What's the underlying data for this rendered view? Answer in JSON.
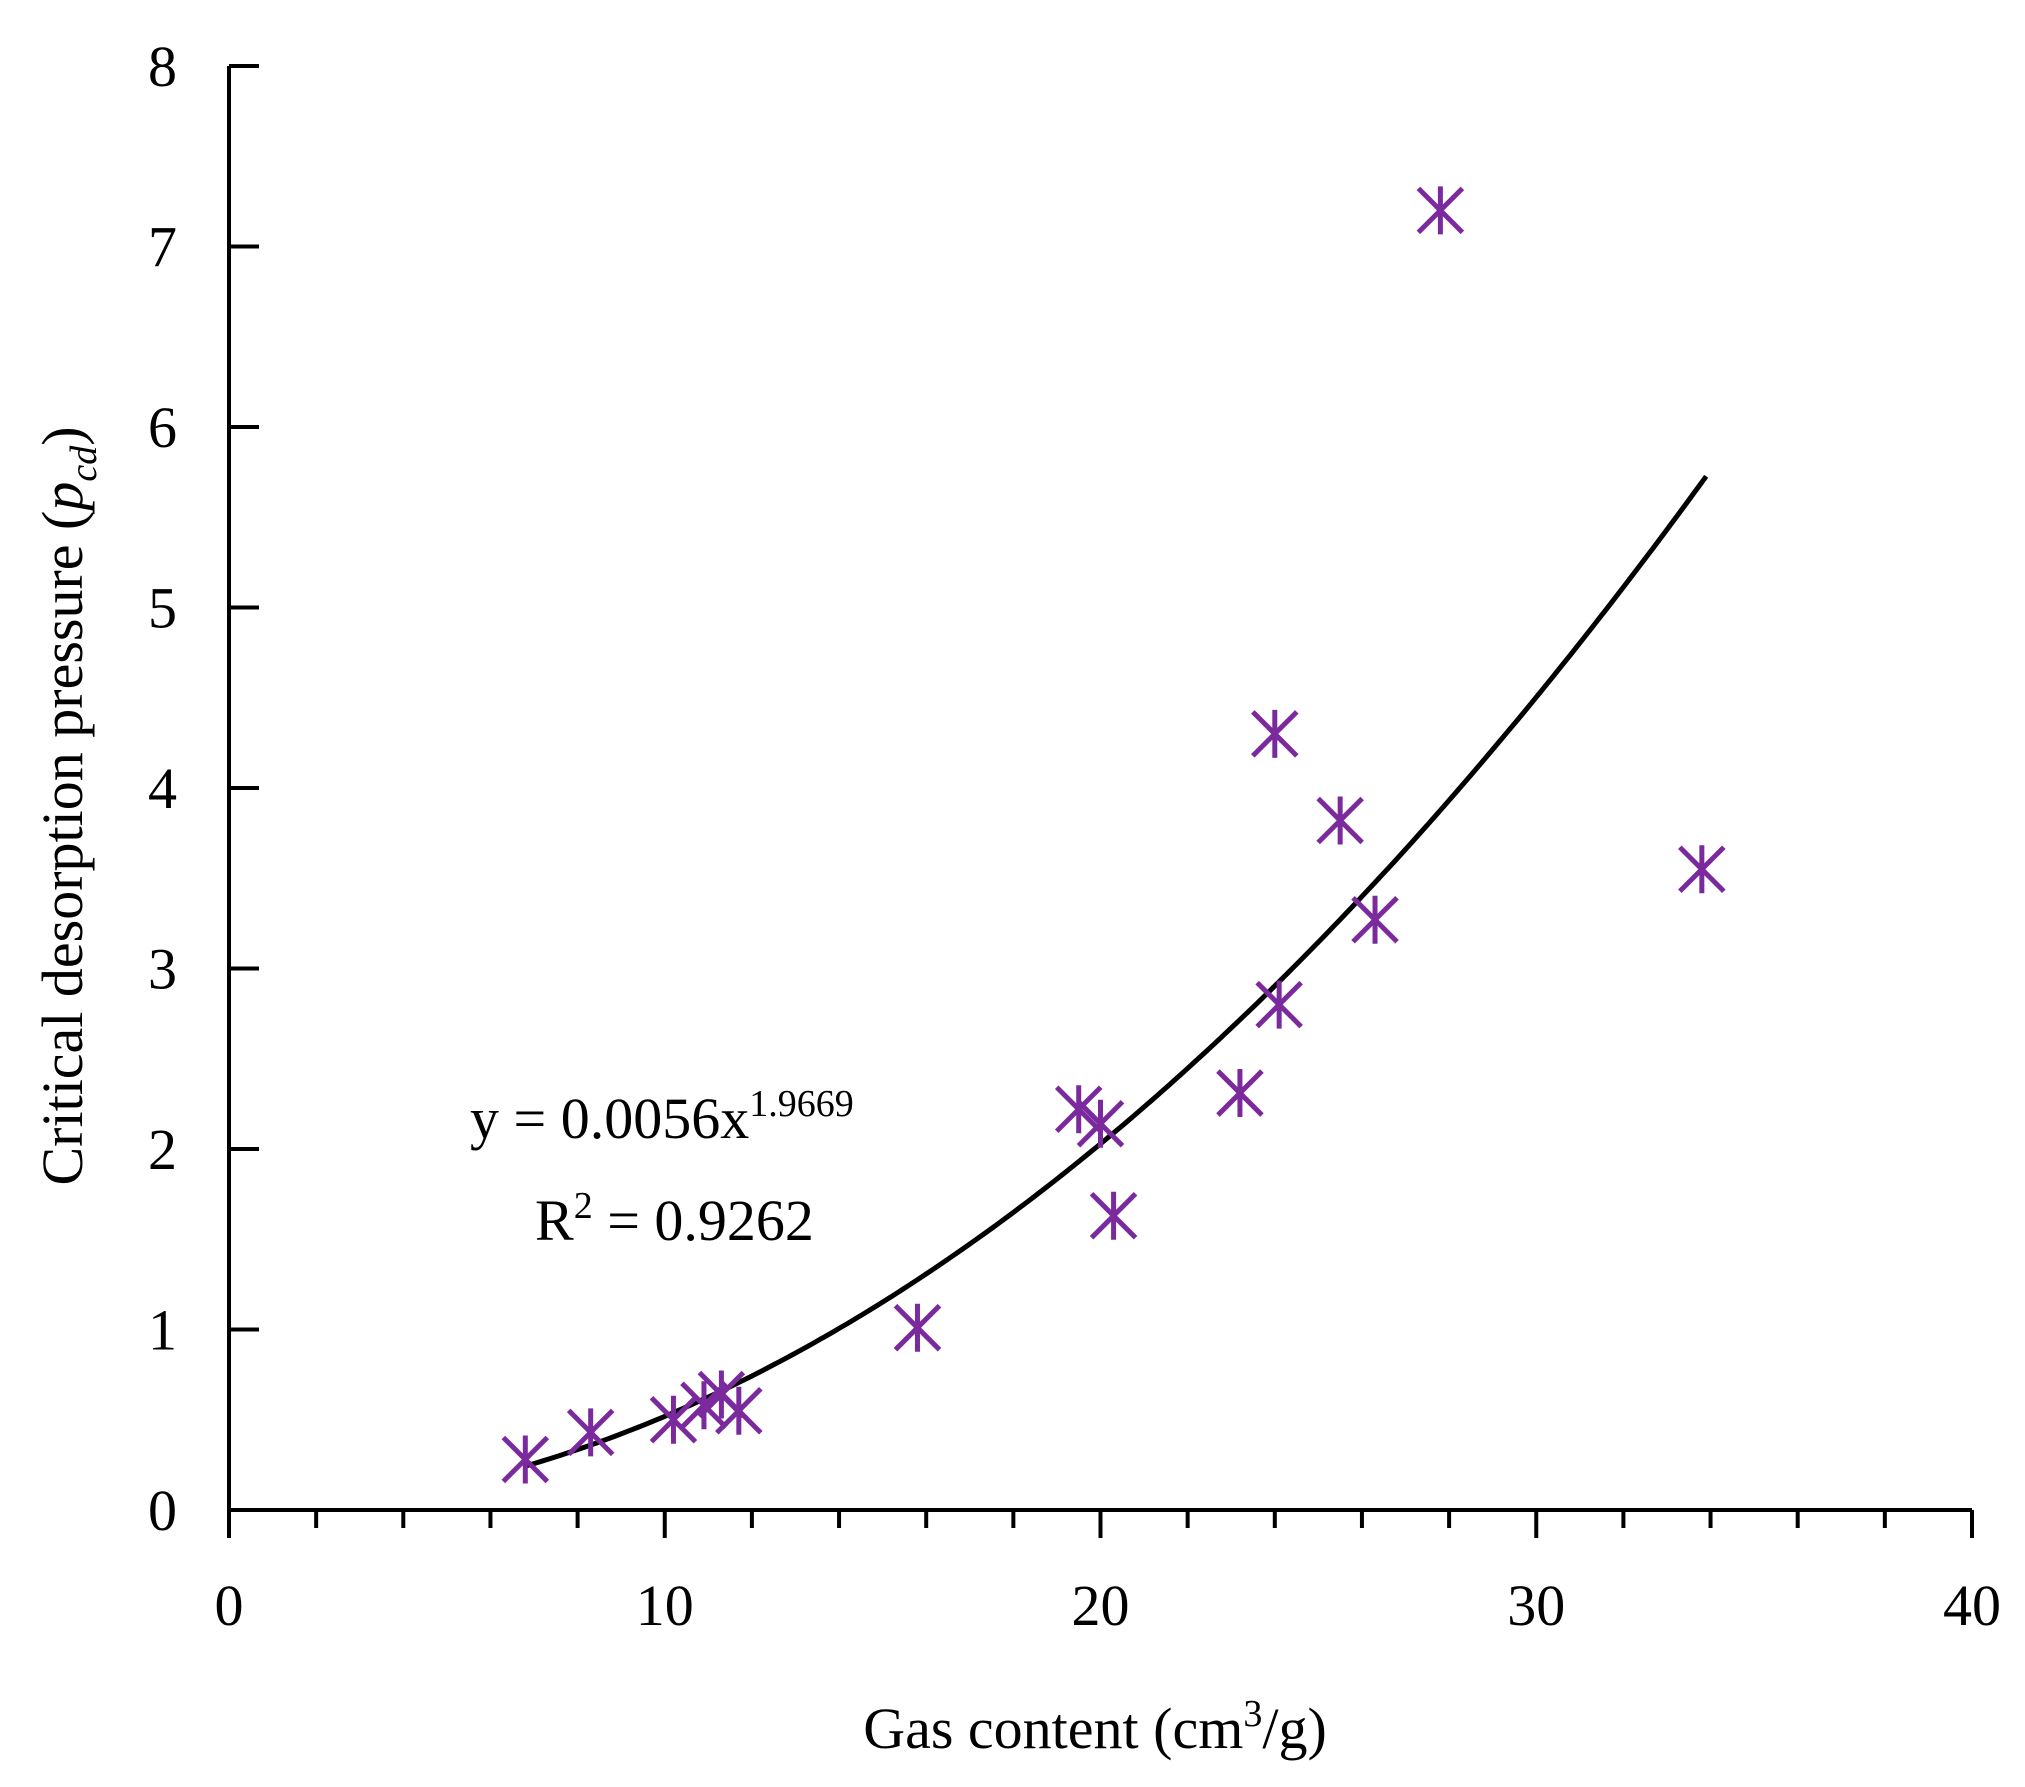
{
  "chart_data": {
    "type": "scatter",
    "title": "",
    "xlabel": {
      "main": "Gas content (cm",
      "sup": "3",
      "tail": "/g)"
    },
    "ylabel": {
      "main": "Critical desorption pressure (",
      "italic": "p",
      "sub": "cd",
      "tail": ")"
    },
    "xlim": [
      0,
      40
    ],
    "ylim": [
      0,
      8
    ],
    "x_ticks": [
      "0",
      "10",
      "20",
      "30",
      "40"
    ],
    "y_ticks": [
      "0",
      "1",
      "2",
      "3",
      "4",
      "5",
      "6",
      "7",
      "8"
    ],
    "x_minor_step": 2,
    "grid": false,
    "marker_color": "#7B2A9E",
    "marker": "asterisk",
    "series": [
      {
        "points": [
          [
            6.8,
            0.28
          ],
          [
            8.3,
            0.43
          ],
          [
            10.2,
            0.5
          ],
          [
            10.9,
            0.58
          ],
          [
            11.3,
            0.64
          ],
          [
            11.7,
            0.55
          ],
          [
            15.8,
            1.01
          ],
          [
            19.5,
            2.22
          ],
          [
            20.0,
            2.14
          ],
          [
            20.3,
            1.63
          ],
          [
            23.2,
            2.31
          ],
          [
            24.0,
            4.3
          ],
          [
            24.1,
            2.8
          ],
          [
            25.5,
            3.82
          ],
          [
            26.3,
            3.27
          ],
          [
            27.8,
            7.2
          ],
          [
            33.8,
            3.55
          ]
        ]
      }
    ],
    "fit": {
      "type": "power",
      "a": 0.0056,
      "b": 1.9669,
      "x_range": [
        6.8,
        33.9
      ],
      "color": "#000000",
      "equation": {
        "prefix": "y = 0.0056x",
        "exponent": "1.9669"
      },
      "r2": {
        "prefix": "R",
        "sup": "2",
        "value": " = 0.9262"
      }
    }
  }
}
